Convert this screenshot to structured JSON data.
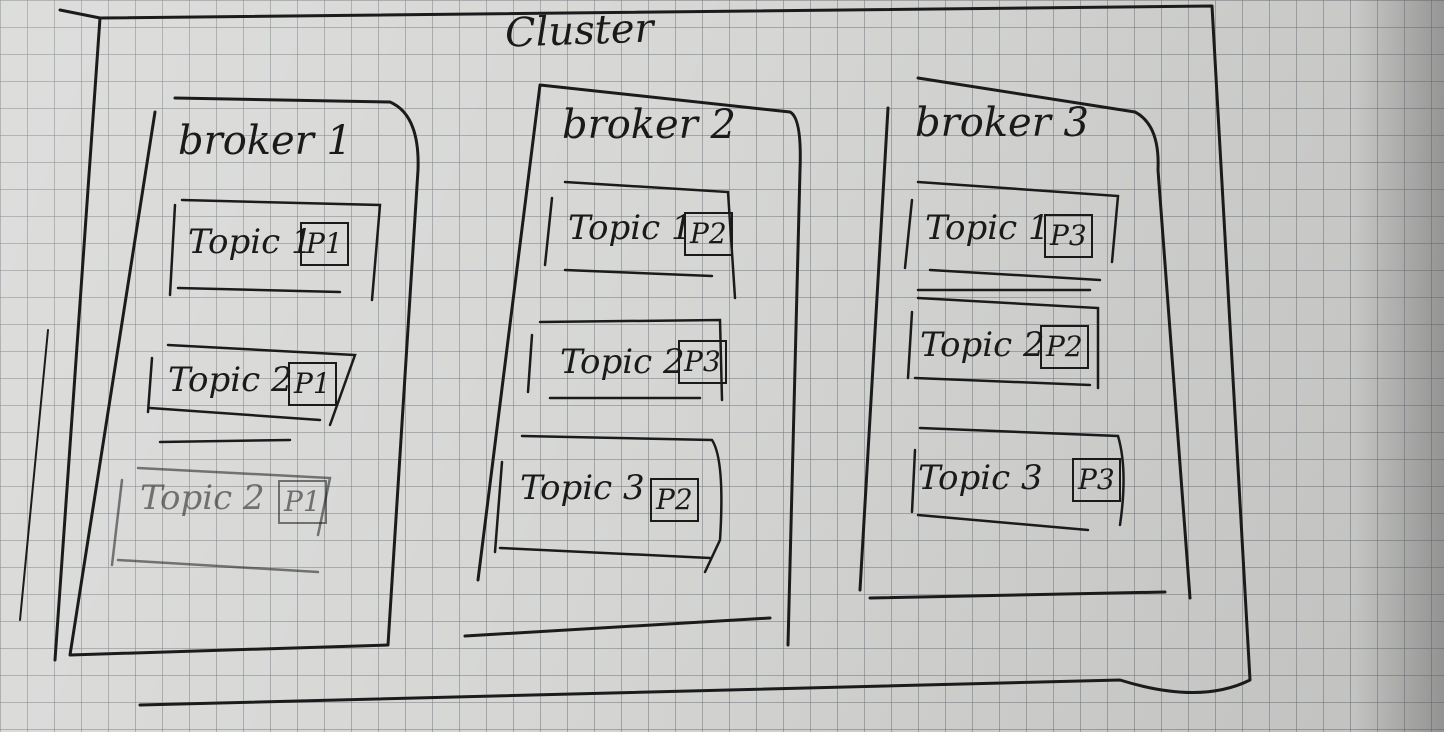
{
  "cluster": {
    "title": "Cluster"
  },
  "brokers": [
    {
      "name": "broker 1",
      "topics": [
        {
          "topic": "Topic 1",
          "partition": "P1"
        },
        {
          "topic": "Topic 2",
          "partition": "P1"
        },
        {
          "topic": "Topic 2",
          "partition": "P1"
        }
      ]
    },
    {
      "name": "broker 2",
      "topics": [
        {
          "topic": "Topic 1",
          "partition": "P2"
        },
        {
          "topic": "Topic 2",
          "partition": "P3"
        },
        {
          "topic": "Topic 3",
          "partition": "P2"
        }
      ]
    },
    {
      "name": "broker 3",
      "topics": [
        {
          "topic": "Topic 1",
          "partition": "P3"
        },
        {
          "topic": "Topic 2",
          "partition": "P2"
        },
        {
          "topic": "Topic 3",
          "partition": "P3"
        }
      ]
    }
  ]
}
